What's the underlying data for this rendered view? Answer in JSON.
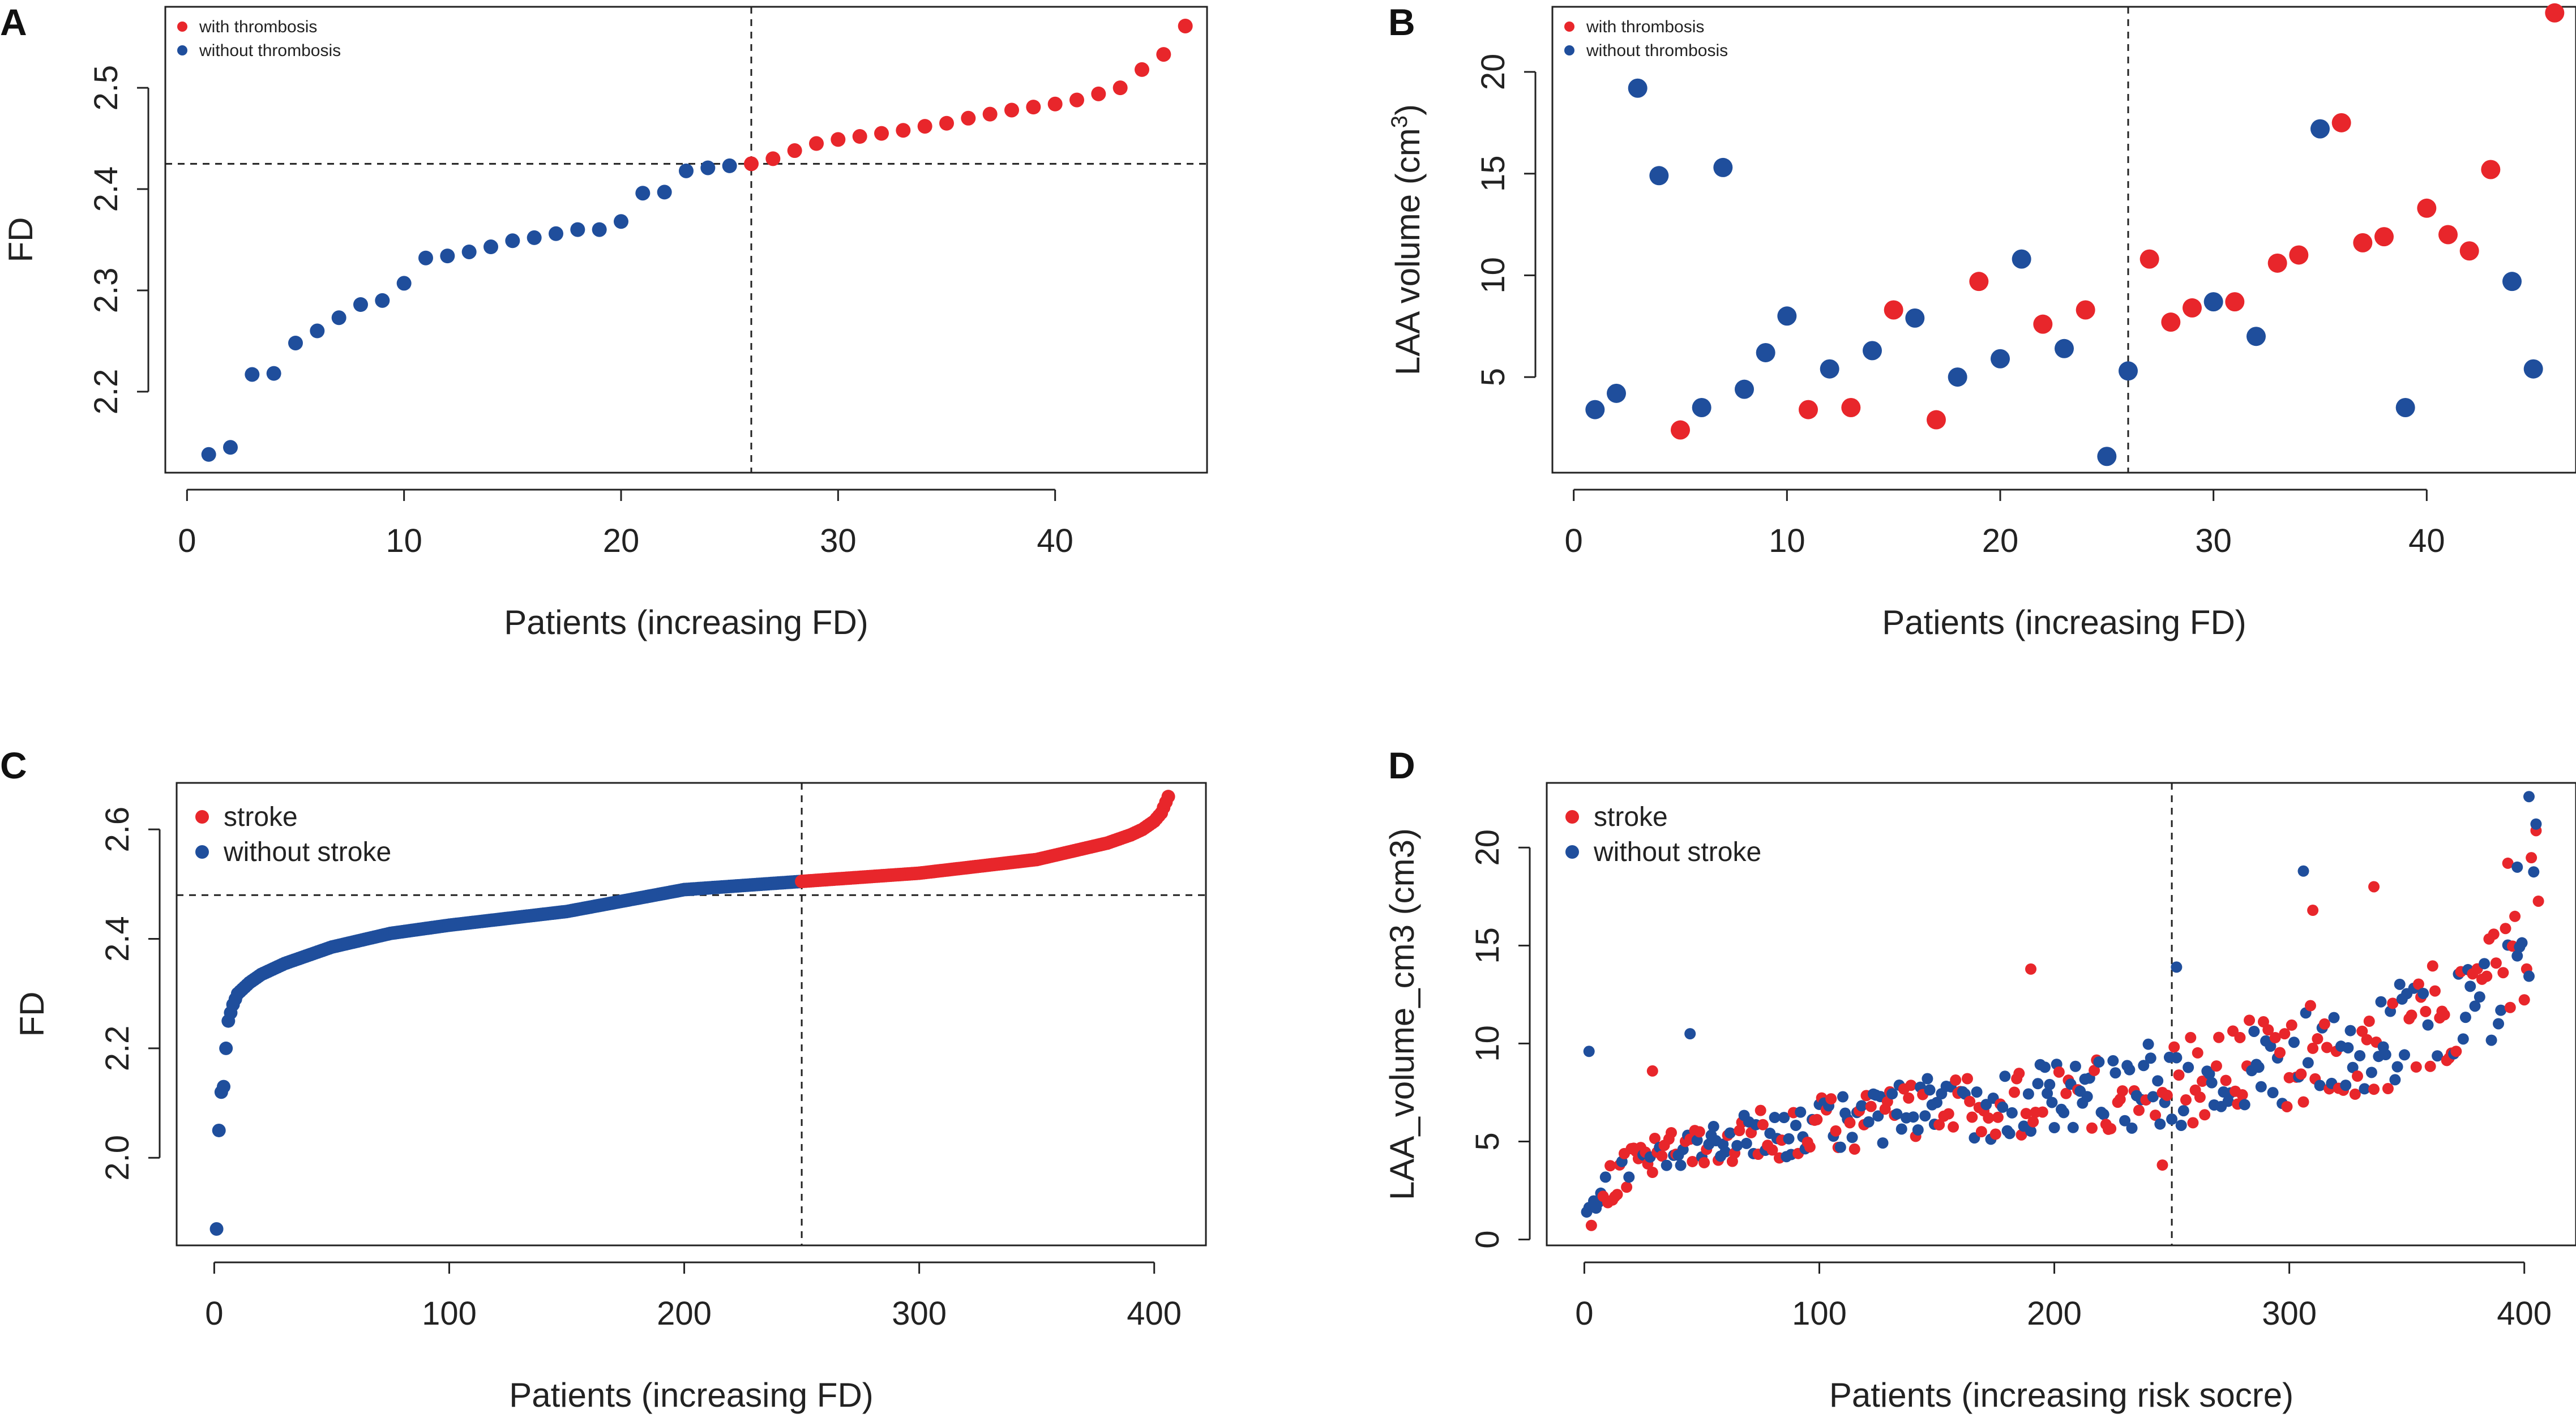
{
  "chart_data": [
    {
      "panel": "A",
      "type": "scatter",
      "xlabel": "Patients (increasing FD)",
      "ylabel": "FD",
      "xlim": [
        -1,
        47
      ],
      "ylim": [
        2.12,
        2.58
      ],
      "xticks": [
        0,
        10,
        20,
        30,
        40
      ],
      "yticks": [
        2.2,
        2.3,
        2.4,
        2.5
      ],
      "tick_decimals": 1,
      "cutoff_x": 26,
      "cutoff_y": 2.425,
      "legend_position": "top-left",
      "legend_size": "small",
      "series": [
        {
          "name": "with thrombosis",
          "color": "#e8262b",
          "x": [
            26,
            27,
            28,
            29,
            30,
            31,
            32,
            33,
            34,
            35,
            36,
            37,
            38,
            39,
            40,
            41,
            42,
            43,
            44,
            45,
            46
          ],
          "y": [
            2.425,
            2.43,
            2.438,
            2.445,
            2.449,
            2.452,
            2.455,
            2.458,
            2.462,
            2.465,
            2.47,
            2.474,
            2.478,
            2.481,
            2.484,
            2.488,
            2.494,
            2.5,
            2.518,
            2.533,
            2.561
          ]
        },
        {
          "name": "without thrombosis",
          "color": "#1f4e9c",
          "x": [
            1,
            2,
            3,
            4,
            5,
            6,
            7,
            8,
            9,
            10,
            11,
            12,
            13,
            14,
            15,
            16,
            17,
            18,
            19,
            20,
            21,
            22,
            23,
            24,
            25
          ],
          "y": [
            2.138,
            2.145,
            2.217,
            2.218,
            2.248,
            2.26,
            2.273,
            2.286,
            2.29,
            2.307,
            2.332,
            2.334,
            2.338,
            2.343,
            2.349,
            2.352,
            2.356,
            2.36,
            2.36,
            2.368,
            2.396,
            2.397,
            2.418,
            2.421,
            2.423
          ]
        }
      ]
    },
    {
      "panel": "B",
      "type": "scatter",
      "xlabel": "Patients (increasing FD)",
      "ylabel_main": "LAA volume (cm",
      "ylabel_sup": "3",
      "ylabel_tail": ")",
      "xlim": [
        -1,
        47
      ],
      "ylim": [
        0.3,
        23.2
      ],
      "xticks": [
        0,
        10,
        20,
        30,
        40
      ],
      "yticks": [
        5,
        10,
        15,
        20
      ],
      "tick_decimals": 0,
      "cutoff_x": 26,
      "legend_position": "top-left",
      "legend_size": "small",
      "series": [
        {
          "name": "with thrombosis",
          "color": "#e8262b",
          "x": [
            5,
            11,
            13,
            15,
            17,
            19,
            22,
            24,
            27,
            28,
            29,
            31,
            33,
            34,
            36,
            37,
            38,
            40,
            41,
            42,
            43,
            46
          ],
          "y": [
            2.4,
            3.4,
            3.5,
            8.3,
            2.9,
            9.7,
            7.6,
            8.3,
            10.8,
            7.7,
            8.4,
            8.7,
            10.6,
            11.0,
            17.5,
            11.6,
            11.9,
            13.3,
            12.0,
            11.2,
            15.2,
            22.9
          ]
        },
        {
          "name": "without thrombosis",
          "color": "#1f4e9c",
          "x": [
            1,
            2,
            3,
            4,
            6,
            7,
            8,
            9,
            10,
            12,
            14,
            16,
            18,
            20,
            21,
            23,
            25,
            26,
            30,
            32,
            35,
            39,
            44,
            45
          ],
          "y": [
            3.4,
            4.2,
            19.2,
            14.9,
            3.5,
            15.3,
            4.4,
            6.2,
            8.0,
            5.4,
            6.3,
            7.9,
            5.0,
            5.9,
            10.8,
            6.4,
            1.1,
            5.3,
            8.7,
            7.0,
            17.2,
            3.5,
            9.7,
            5.4
          ]
        }
      ]
    },
    {
      "panel": "C",
      "type": "scatter",
      "xlabel": "Patients (increasing FD)",
      "ylabel": "FD",
      "xlim": [
        -16,
        422
      ],
      "ylim": [
        1.84,
        2.685
      ],
      "xticks": [
        0,
        100,
        200,
        300,
        400
      ],
      "yticks": [
        2.0,
        2.2,
        2.4,
        2.6
      ],
      "tick_decimals": 1,
      "cutoff_x": 250,
      "cutoff_y": 2.48,
      "legend_position": "top-left",
      "legend_size": "large",
      "series_generated": {
        "rule": "monotone FD curve sampled at patients 1..406",
        "knots_x": [
          1,
          2,
          3,
          4,
          5,
          6,
          8,
          10,
          15,
          20,
          30,
          50,
          75,
          100,
          150,
          200,
          250,
          300,
          350,
          380,
          390,
          395,
          400,
          403,
          406
        ],
        "knots_y": [
          1.87,
          2.05,
          2.12,
          2.13,
          2.2,
          2.25,
          2.28,
          2.3,
          2.32,
          2.335,
          2.355,
          2.385,
          2.41,
          2.425,
          2.45,
          2.49,
          2.505,
          2.52,
          2.545,
          2.575,
          2.59,
          2.6,
          2.615,
          2.63,
          2.66
        ]
      },
      "series": [
        {
          "name": "stroke",
          "color": "#e8262b",
          "from": 250,
          "to": 406
        },
        {
          "name": "without stroke",
          "color": "#1f4e9c",
          "from": 1,
          "to": 249
        }
      ]
    },
    {
      "panel": "D",
      "type": "scatter",
      "xlabel": "Patients (increasing risk socre)",
      "ylabel": "LAA_volume_cm3 (cm3)",
      "xlim": [
        -16,
        422
      ],
      "ylim": [
        -0.3,
        23.3
      ],
      "xticks": [
        0,
        100,
        200,
        300,
        400
      ],
      "yticks": [
        0,
        5,
        10,
        15,
        20
      ],
      "tick_decimals": 0,
      "cutoff_x": 250,
      "legend_position": "top-left",
      "legend_size": "large",
      "series_generated": {
        "rule": "trend with scatter, patients 1..406, colours split by stroke status",
        "trend_x": [
          0,
          5,
          20,
          50,
          100,
          150,
          200,
          250,
          300,
          350,
          380,
          400,
          406
        ],
        "trend_y": [
          0.5,
          2.2,
          3.8,
          4.8,
          5.8,
          6.6,
          7.3,
          7.9,
          9.2,
          10.6,
          12.0,
          15.0,
          19.0
        ],
        "extra_points": [
          {
            "x": 2,
            "y": 9.6,
            "series": 1
          },
          {
            "x": 45,
            "y": 10.5,
            "series": 1
          },
          {
            "x": 29,
            "y": 8.6,
            "series": 0
          },
          {
            "x": 190,
            "y": 13.8,
            "series": 0
          },
          {
            "x": 306,
            "y": 18.8,
            "series": 1
          },
          {
            "x": 310,
            "y": 16.8,
            "series": 0
          },
          {
            "x": 336,
            "y": 18.0,
            "series": 0
          },
          {
            "x": 393,
            "y": 19.2,
            "series": 0
          },
          {
            "x": 397,
            "y": 19.0,
            "series": 1
          },
          {
            "x": 402,
            "y": 22.6,
            "series": 1
          },
          {
            "x": 405,
            "y": 21.2,
            "series": 1
          },
          {
            "x": 246,
            "y": 3.8,
            "series": 0
          },
          {
            "x": 252,
            "y": 13.9,
            "series": 1
          }
        ]
      },
      "series": [
        {
          "name": "stroke",
          "color": "#e8262b"
        },
        {
          "name": "without stroke",
          "color": "#1f4e9c"
        }
      ]
    }
  ]
}
